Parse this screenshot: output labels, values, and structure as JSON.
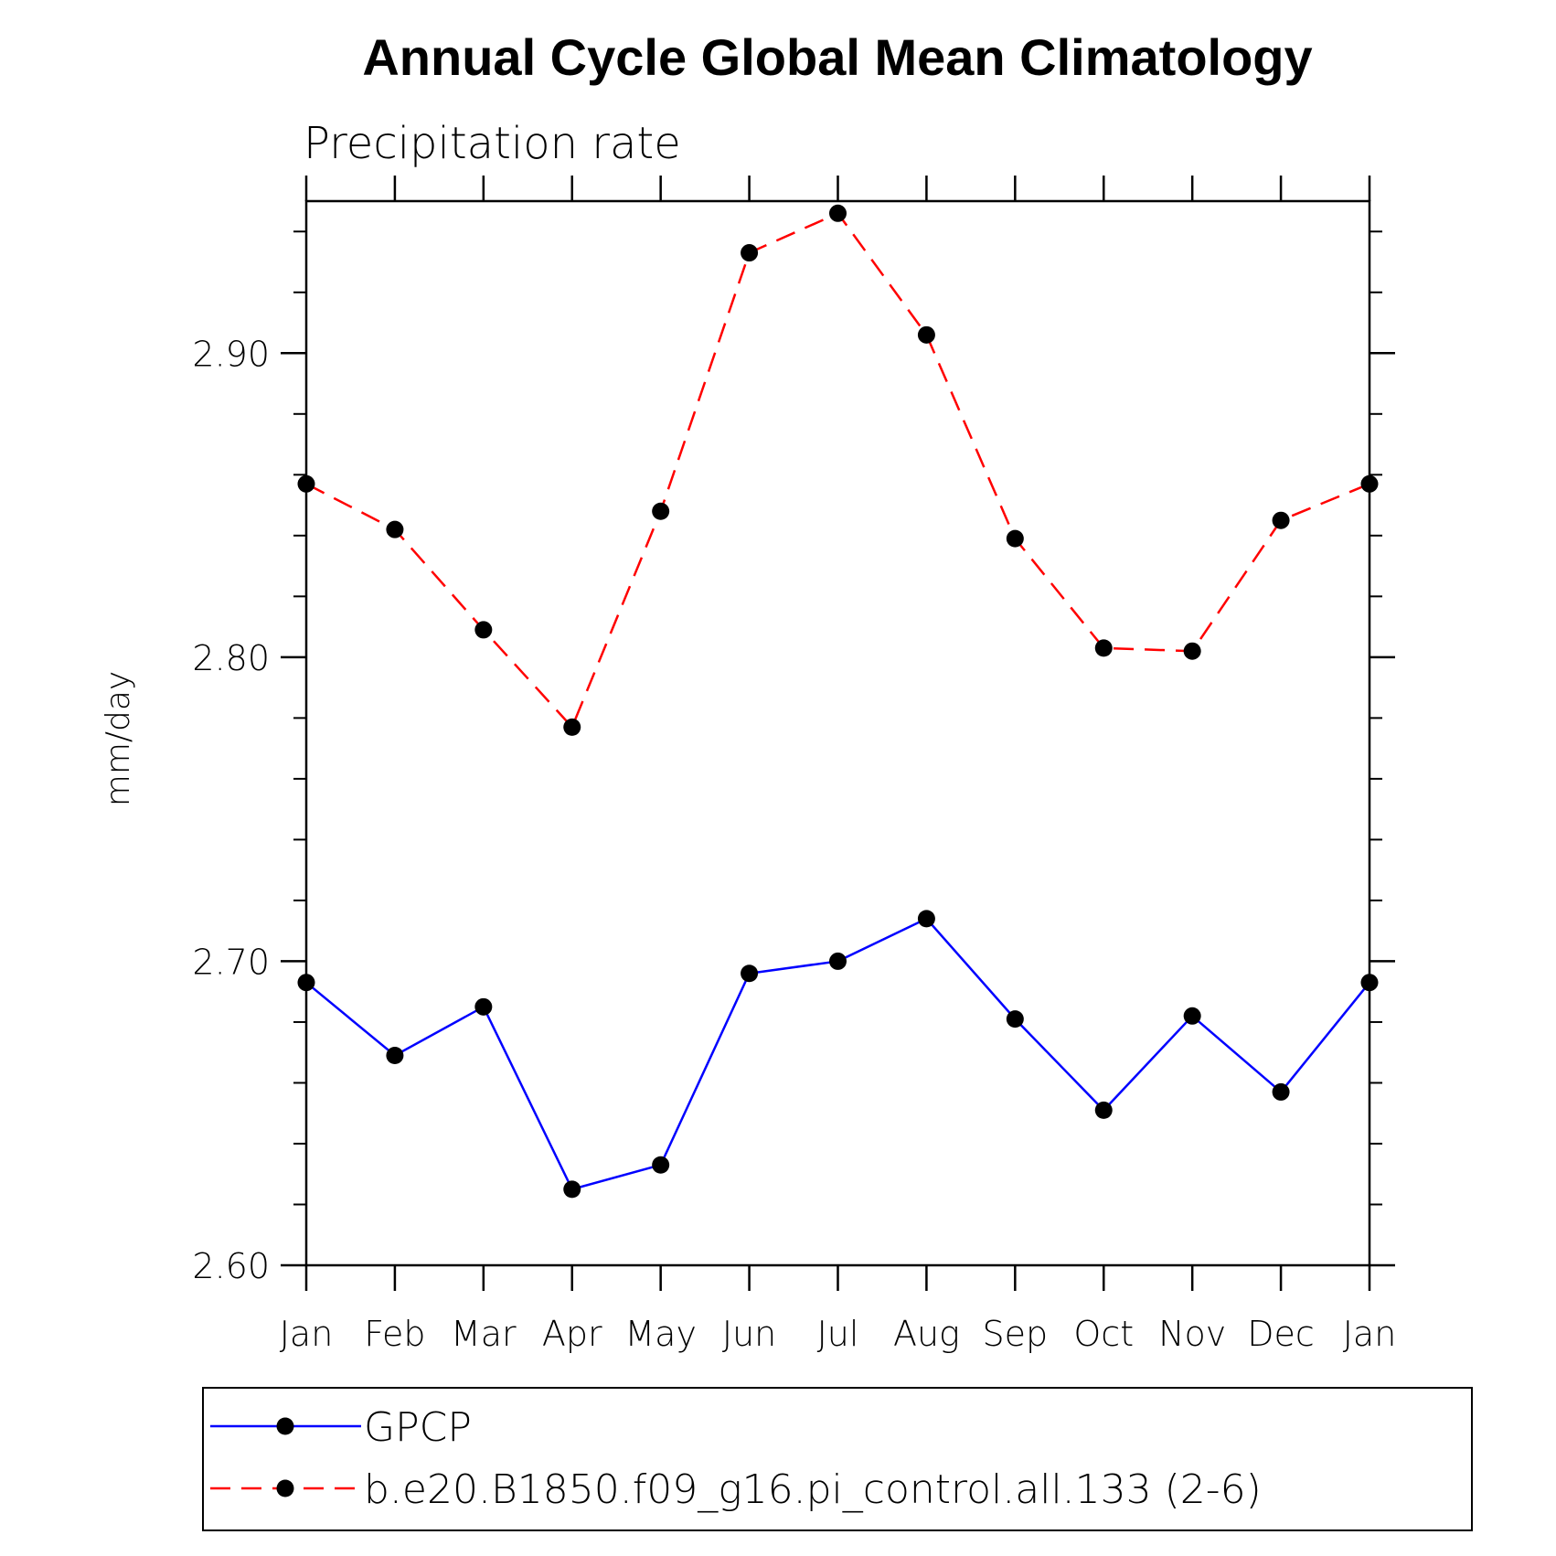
{
  "chart_data": {
    "type": "line",
    "title": "Annual Cycle Global Mean Climatology",
    "subtitle": "Precipitation rate",
    "xlabel": "",
    "ylabel": "mm/day",
    "categories": [
      "Jan",
      "Feb",
      "Mar",
      "Apr",
      "May",
      "Jun",
      "Jul",
      "Aug",
      "Sep",
      "Oct",
      "Nov",
      "Dec",
      "Jan"
    ],
    "ylim": [
      2.6,
      2.95
    ],
    "yticks": [
      2.6,
      2.7,
      2.8,
      2.9
    ],
    "ytick_labels": [
      "2.60",
      "2.70",
      "2.80",
      "2.90"
    ],
    "y_minor_step": 0.02,
    "grid": false,
    "legend_position": "bottom",
    "series": [
      {
        "name": "GPCP",
        "color": "#0000ff",
        "line_style": "solid",
        "marker": "filled-circle",
        "values": [
          2.693,
          2.669,
          2.685,
          2.625,
          2.633,
          2.696,
          2.7,
          2.714,
          2.681,
          2.651,
          2.682,
          2.657,
          2.693
        ]
      },
      {
        "name": "b.e20.B1850.f09_g16.pi_control.all.133 (2-6)",
        "color": "#ff0000",
        "line_style": "dashed",
        "marker": "filled-circle",
        "values": [
          2.857,
          2.842,
          2.809,
          2.777,
          2.848,
          2.933,
          2.946,
          2.906,
          2.839,
          2.803,
          2.802,
          2.845,
          2.857
        ]
      }
    ]
  }
}
